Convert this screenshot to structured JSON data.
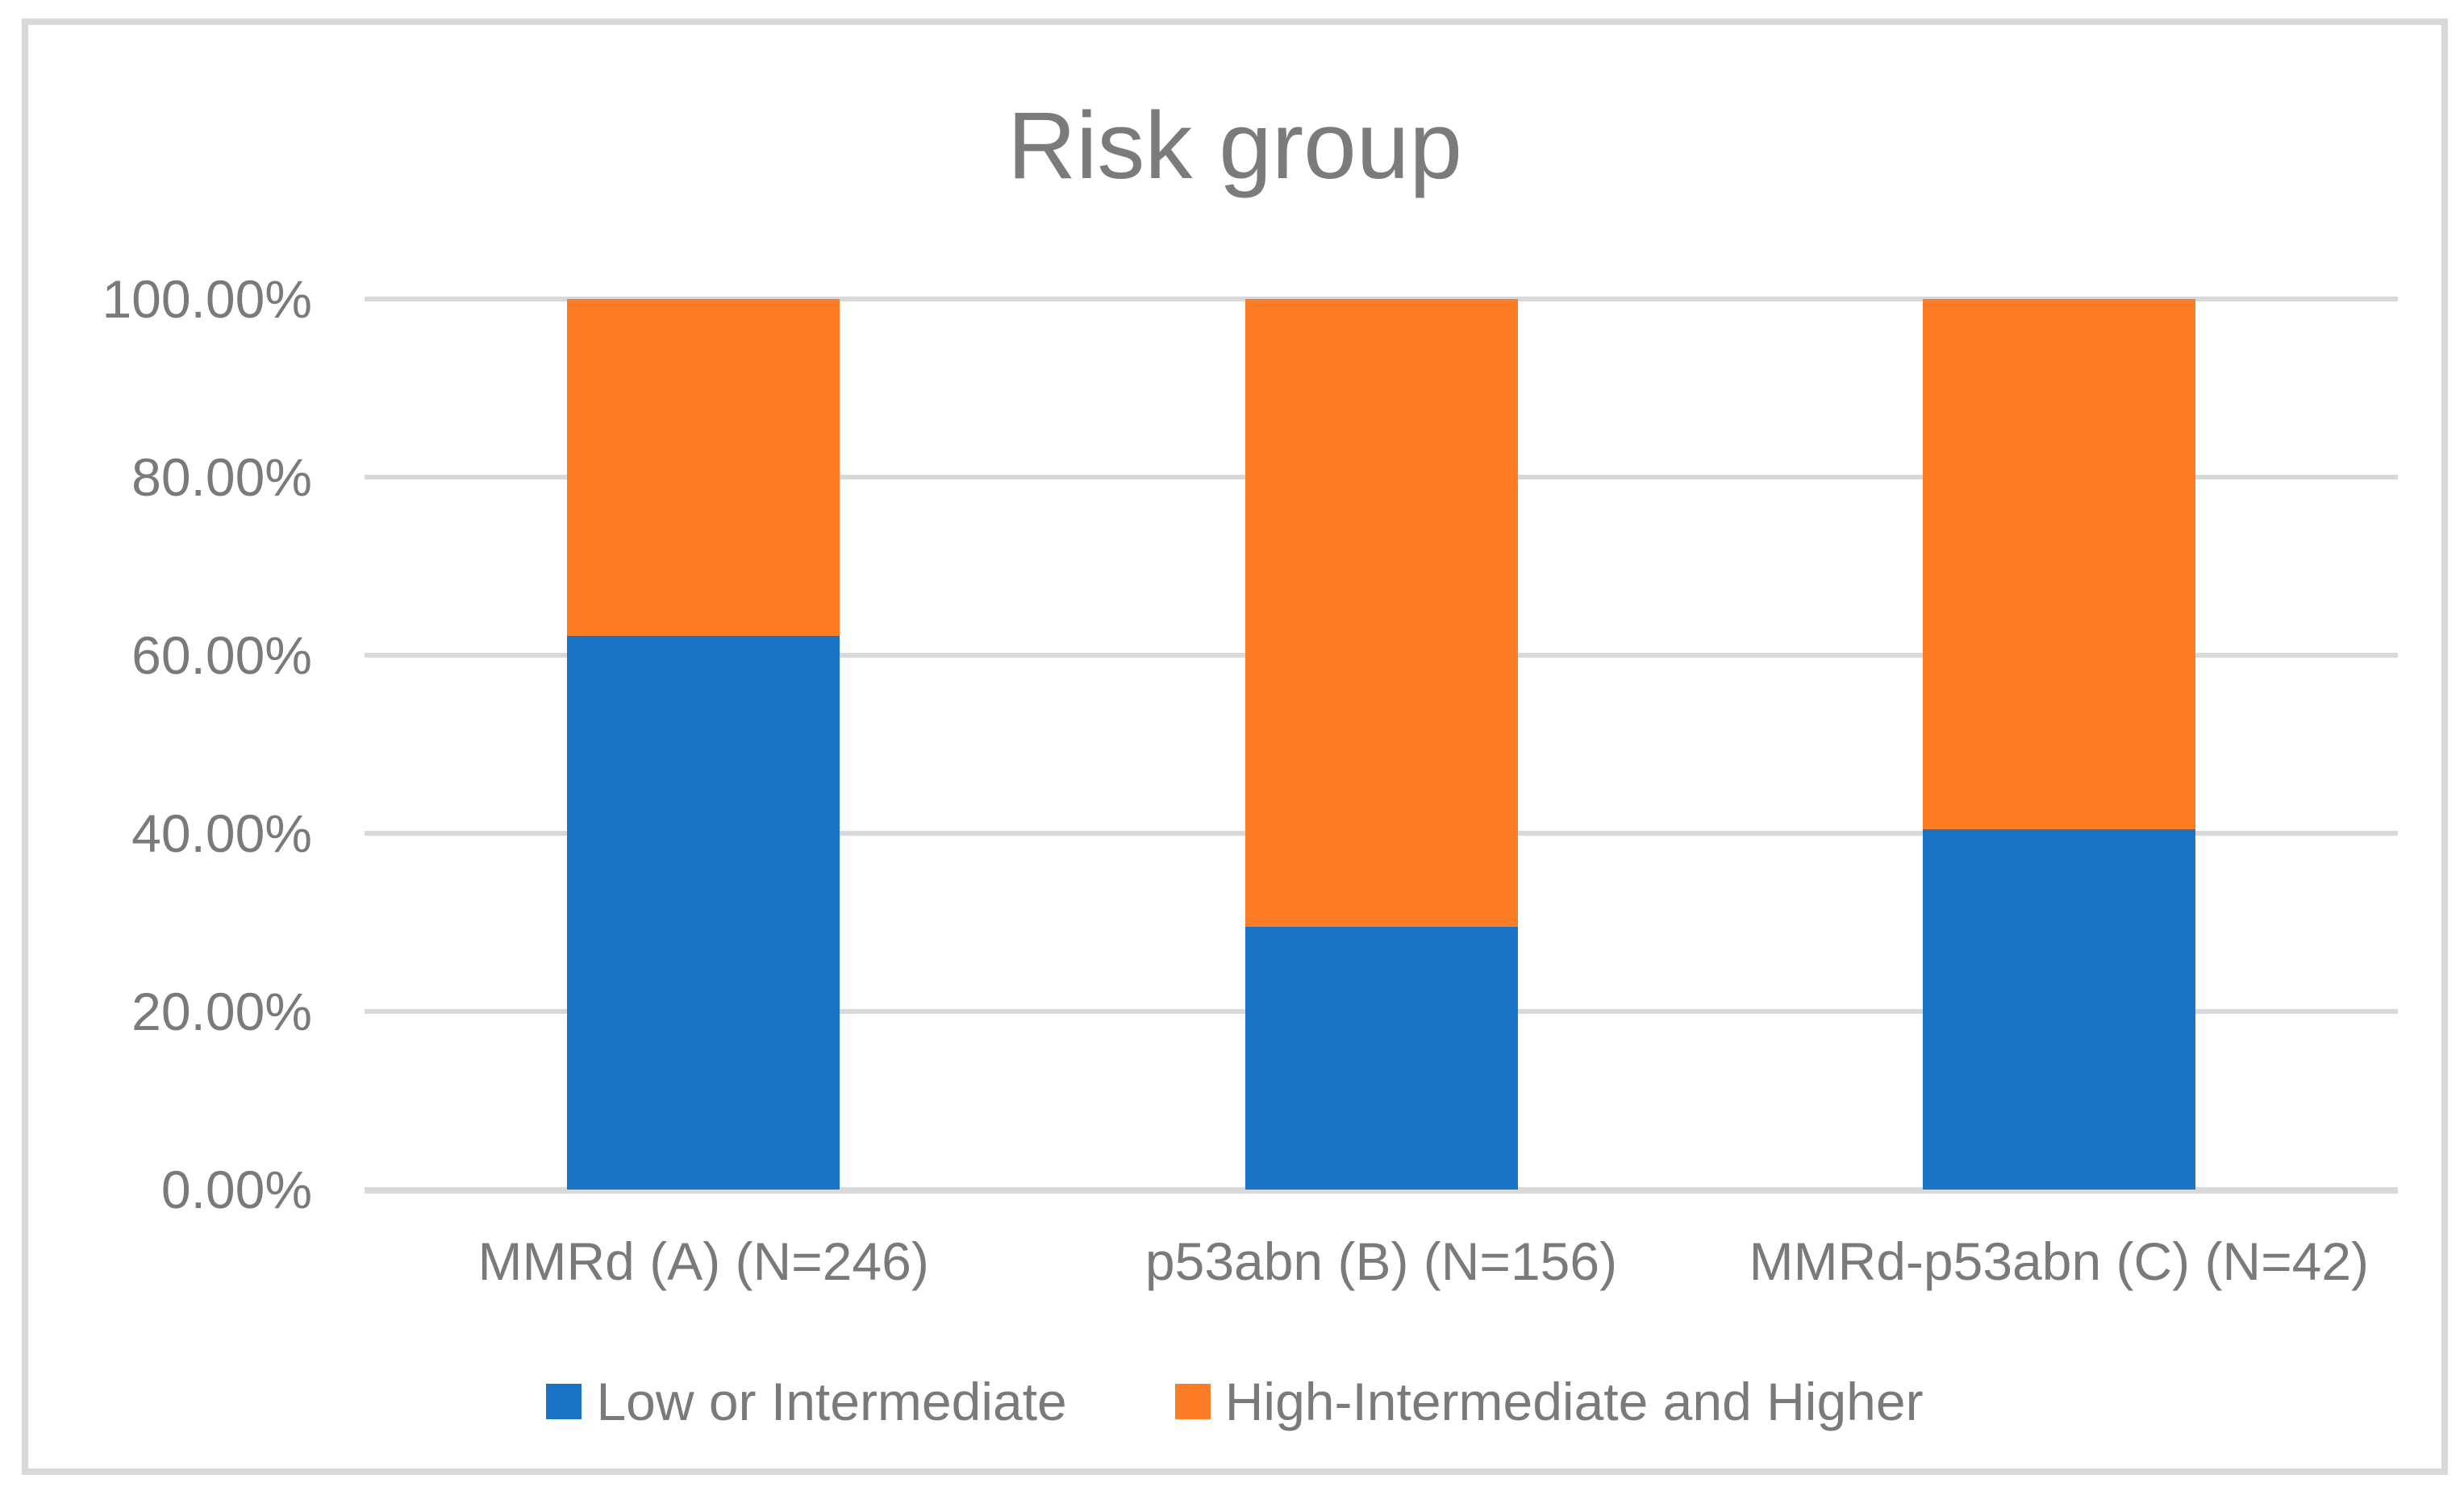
{
  "figure": {
    "title": "Risk group"
  },
  "chart_data": {
    "type": "bar",
    "stacked": true,
    "percent_scale": true,
    "title": "Risk group",
    "categories": [
      "MMRd (A) (N=246)",
      "p53abn (B) (N=156)",
      "MMRd-p53abn (C) (N=42)"
    ],
    "series": [
      {
        "name": "Low or Intermediate",
        "color": "#1A73C4",
        "values": [
          62.2,
          29.49,
          40.48
        ]
      },
      {
        "name": "High-Intermediate and Higher",
        "color": "#FC7D25",
        "values": [
          37.8,
          70.51,
          59.52
        ]
      }
    ],
    "xlabel": "",
    "ylabel": "",
    "ylim": [
      0,
      100
    ],
    "yticks": [
      "0.00%",
      "20.00%",
      "40.00%",
      "60.00%",
      "80.00%",
      "100.00%"
    ],
    "grid": true,
    "legend_position": "bottom",
    "colors": {
      "gridline": "#D9D9D9",
      "frame_border": "#D9D9D9",
      "axis_text": "#7A7A7A",
      "title_text": "#7B7B7B",
      "background": "#FFFFFF"
    }
  }
}
